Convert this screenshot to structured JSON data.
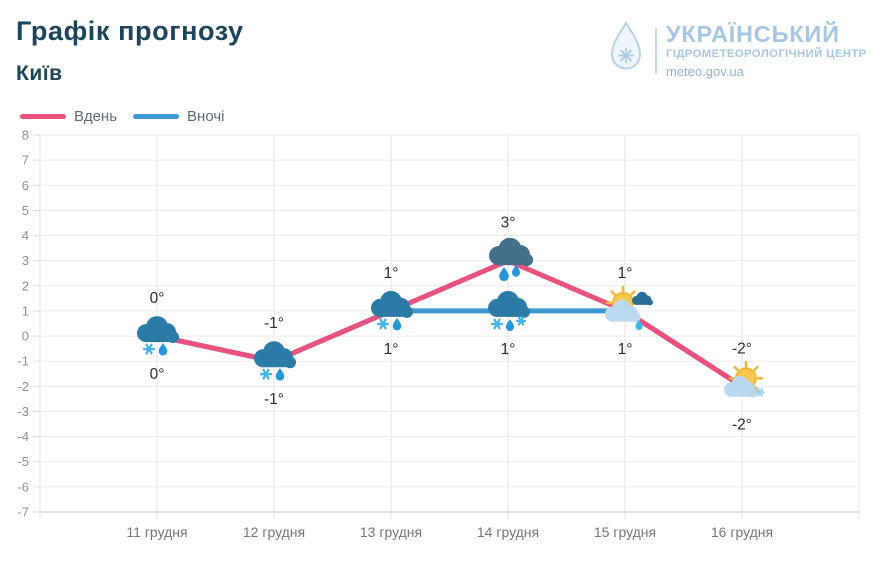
{
  "header": {
    "title": "Графік прогнозу",
    "city": "Київ"
  },
  "logo": {
    "drop_icon": "water-drop-snowflake-icon",
    "org_line1": "УКРАЇНСЬКИЙ",
    "org_line2": "ГІДРОМЕТЕОРОЛОГІЧНИЙ ЦЕНТР",
    "site": "meteo.gov.ua",
    "text_color": "#a7c6e2"
  },
  "legend": {
    "items": [
      {
        "label": "Вдень",
        "color": "#e8527c"
      },
      {
        "label": "Вночі",
        "color": "#3d98d2"
      }
    ]
  },
  "chart_data": {
    "type": "line",
    "title": "Графік прогнозу",
    "subtitle": "Київ",
    "categories": [
      "11 грудня",
      "12 грудня",
      "13 грудня",
      "14 грудня",
      "15 грудня",
      "16 грудня"
    ],
    "ylim": [
      -7,
      8
    ],
    "y_ticks": [
      8,
      7,
      6,
      5,
      4,
      3,
      2,
      1,
      0,
      -1,
      -2,
      -3,
      -4,
      -5,
      -6,
      -7
    ],
    "grid": true,
    "legend_position": "top-left",
    "series": [
      {
        "name": "Вдень",
        "color": "#e8527c",
        "values": [
          0,
          -1,
          1,
          3,
          1,
          -2
        ],
        "labels": [
          "0°",
          "-1°",
          "1°",
          "3°",
          "1°",
          "-2°"
        ],
        "label_position": "above",
        "icons": [
          "cloud-snow-rain",
          "cloud-snow-rain",
          "cloud-snow-rain",
          "cloud-rain",
          "sun-cloud-rain",
          "sun-cloud"
        ]
      },
      {
        "name": "Вночі",
        "color": "#3d98d2",
        "values": [
          0,
          -1,
          1,
          1,
          1,
          -2
        ],
        "labels": [
          "0°",
          "-1°",
          "1°",
          "1°",
          "1°",
          "-2°"
        ],
        "label_position": "below",
        "icons": [
          null,
          null,
          null,
          "cloud-snow-rain-mix",
          null,
          null
        ]
      }
    ],
    "colors": {
      "grid_line": "#ebebeb",
      "axis_line": "#c9c9c9",
      "y_tick_label": "#8f8f8f",
      "x_tick_label": "#757575",
      "point_label": "#2d2d2d"
    }
  }
}
